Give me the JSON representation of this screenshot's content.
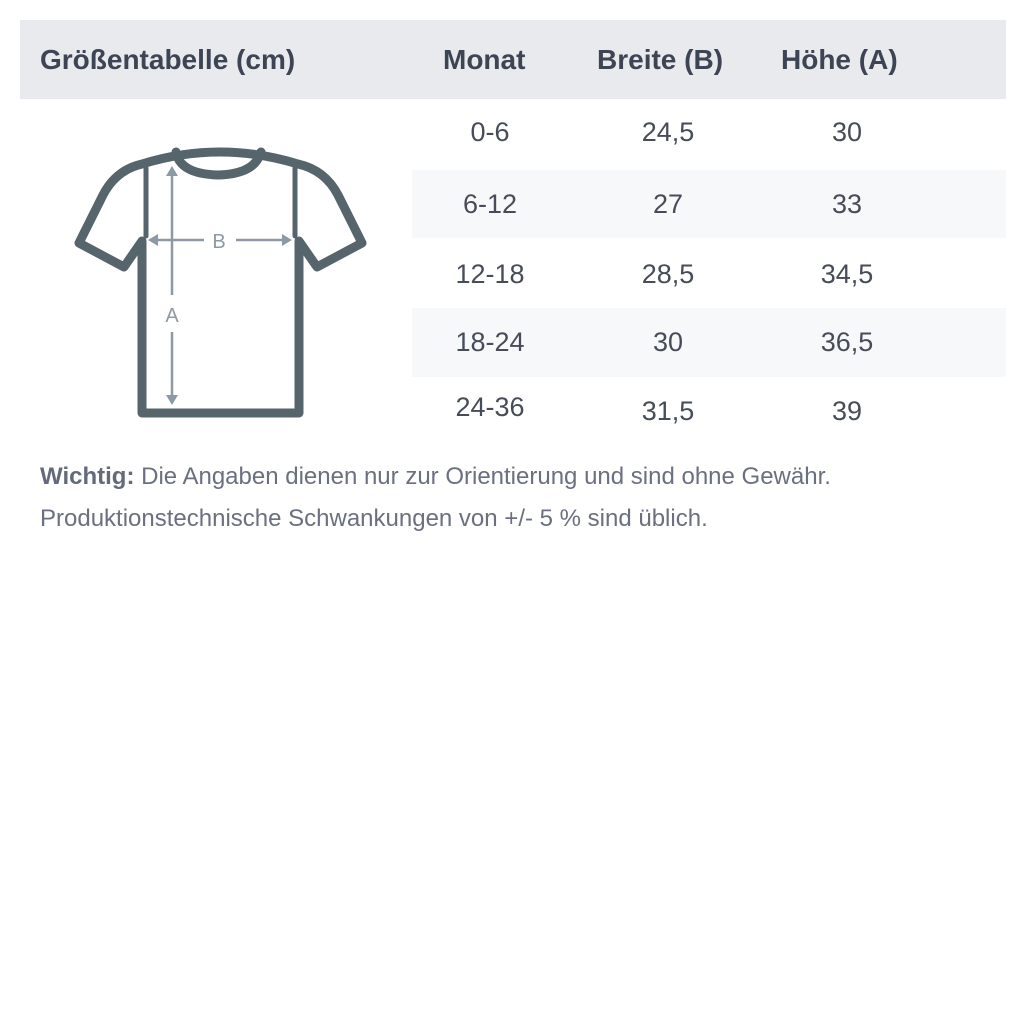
{
  "table": {
    "title": "Größentabelle (cm)",
    "columns": [
      "Monat",
      "Breite (B)",
      "Höhe (A)"
    ],
    "rows": [
      [
        "0-6",
        "24,5",
        "30"
      ],
      [
        "6-12",
        "27",
        "33"
      ],
      [
        "12-18",
        "28,5",
        "34,5"
      ],
      [
        "18-24",
        "30",
        "36,5"
      ],
      [
        "24-36",
        "31,5",
        "39"
      ]
    ]
  },
  "diagram": {
    "label_width": "B",
    "label_height": "A",
    "icon": "t-shirt-icon"
  },
  "note": {
    "label": "Wichtig:",
    "text": " Die Angaben dienen nur zur Orientierung und sind ohne Gewähr. Produktionstechnische Schwankungen von +/- 5 % sind üblich."
  },
  "colors": {
    "header_bg": "#e9eaee",
    "alt_row_bg": "#f7f8fa",
    "shirt": "#56646c",
    "measure": "#8d99a4"
  }
}
